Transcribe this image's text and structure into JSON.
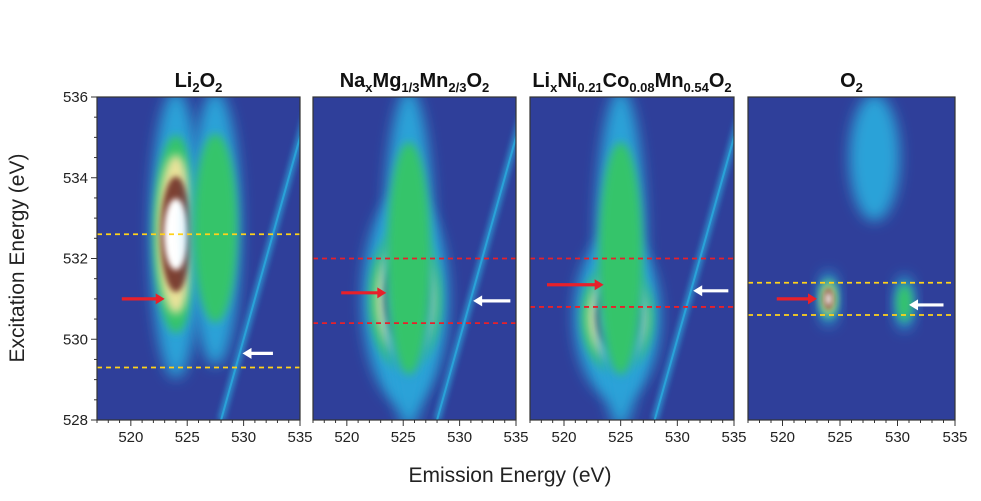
{
  "chart_data": {
    "type": "heatmap",
    "xlabel": "Emission Energy (eV)",
    "ylabel": "Excitation Energy (eV)",
    "xlim": [
      517,
      535
    ],
    "ylim": [
      528,
      536
    ],
    "x_ticks": [
      520,
      525,
      530,
      535
    ],
    "y_ticks": [
      528,
      530,
      532,
      534,
      536
    ],
    "colors": {
      "colormap": [
        "#2f3f9a",
        "#2aa2d8",
        "#35c46a",
        "#e8e29a",
        "#7b3f30",
        "#ffffff"
      ],
      "red_arrow": "#e8202a",
      "white_arrow": "#ffffff",
      "yellow_dashed_line": "#ffd21a",
      "red_dashed_line": "#e8202a"
    },
    "panels": [
      {
        "title_parts": [
          [
            "Li",
            ""
          ],
          [
            "2",
            "sub"
          ],
          [
            "O",
            ""
          ],
          [
            "2",
            "sub"
          ]
        ],
        "guide_lines": {
          "color": "yellow",
          "excitation_eV": [
            532.6,
            529.3
          ]
        },
        "red_arrow_eV": {
          "from_emission": 519.2,
          "to_emission": 523.0,
          "excitation": 531.0
        },
        "white_arrow_eV": {
          "from_emission": 532.6,
          "to_emission": 529.9,
          "excitation": 529.65
        },
        "features": [
          {
            "kind": "band",
            "emission_eV": 524.0,
            "excitation_range": [
              529.2,
              536
            ],
            "peak_level": 5
          },
          {
            "kind": "band",
            "emission_eV": 527.5,
            "excitation_range": [
              529.5,
              536
            ],
            "peak_level": 2
          },
          {
            "kind": "elastic_line",
            "start": [
              528.0,
              528.0
            ],
            "end": [
              536.0,
              536.0
            ]
          }
        ]
      },
      {
        "title_parts": [
          [
            "Na",
            ""
          ],
          [
            "x",
            "sub"
          ],
          [
            "Mg",
            ""
          ],
          [
            "1/3",
            "sub"
          ],
          [
            "Mn",
            ""
          ],
          [
            "2/3",
            "sub"
          ],
          [
            "O",
            ""
          ],
          [
            "2",
            "sub"
          ]
        ],
        "guide_lines": {
          "color": "red",
          "excitation_eV": [
            532.0,
            530.4
          ]
        },
        "red_arrow_eV": {
          "from_emission": 519.5,
          "to_emission": 523.5,
          "excitation": 531.15
        },
        "white_arrow_eV": {
          "from_emission": 534.5,
          "to_emission": 531.2,
          "excitation": 530.95
        },
        "features": [
          {
            "kind": "blob",
            "emission_eV": 525.2,
            "excitation_range": [
              528.5,
              533.5
            ],
            "peak_level": 5
          },
          {
            "kind": "band",
            "emission_eV": 525.5,
            "excitation_range": [
              528,
              536
            ],
            "peak_level": 2
          },
          {
            "kind": "elastic_line",
            "start": [
              528.0,
              528.0
            ],
            "end": [
              536.0,
              536.0
            ]
          }
        ]
      },
      {
        "title_parts": [
          [
            "Li",
            ""
          ],
          [
            "x",
            "sub"
          ],
          [
            "Ni",
            ""
          ],
          [
            "0.21",
            "sub"
          ],
          [
            "Co",
            ""
          ],
          [
            "0.08",
            "sub"
          ],
          [
            "Mn",
            ""
          ],
          [
            "0.54",
            "sub"
          ],
          [
            "O",
            ""
          ],
          [
            "2",
            "sub"
          ]
        ],
        "guide_lines": {
          "color": "red",
          "excitation_eV": [
            532.0,
            530.8
          ]
        },
        "red_arrow_eV": {
          "from_emission": 518.5,
          "to_emission": 523.5,
          "excitation": 531.35
        },
        "white_arrow_eV": {
          "from_emission": 534.5,
          "to_emission": 531.4,
          "excitation": 531.2
        },
        "features": [
          {
            "kind": "blob",
            "emission_eV": 524.7,
            "excitation_range": [
              528.6,
              532.5
            ],
            "peak_level": 5
          },
          {
            "kind": "band",
            "emission_eV": 525.0,
            "excitation_range": [
              528,
              536
            ],
            "peak_level": 2
          },
          {
            "kind": "elastic_line",
            "start": [
              528.0,
              528.0
            ],
            "end": [
              536.0,
              536.0
            ]
          }
        ]
      },
      {
        "title_parts": [
          [
            "O",
            ""
          ],
          [
            "2",
            "sub"
          ]
        ],
        "guide_lines": {
          "color": "yellow",
          "excitation_eV": [
            531.4,
            530.6
          ]
        },
        "red_arrow_eV": {
          "from_emission": 519.5,
          "to_emission": 523.0,
          "excitation": 531.0
        },
        "white_arrow_eV": {
          "from_emission": 534.0,
          "to_emission": 531.0,
          "excitation": 530.85
        },
        "features": [
          {
            "kind": "spot",
            "emission_eV": 524.0,
            "excitation_eV": 531.0,
            "peak_level": 5
          },
          {
            "kind": "spot",
            "emission_eV": 530.6,
            "excitation_eV": 530.9,
            "peak_level": 2
          },
          {
            "kind": "band",
            "emission_eV": 528.0,
            "excitation_range": [
              533,
              536
            ],
            "peak_level": 1
          }
        ]
      }
    ]
  }
}
